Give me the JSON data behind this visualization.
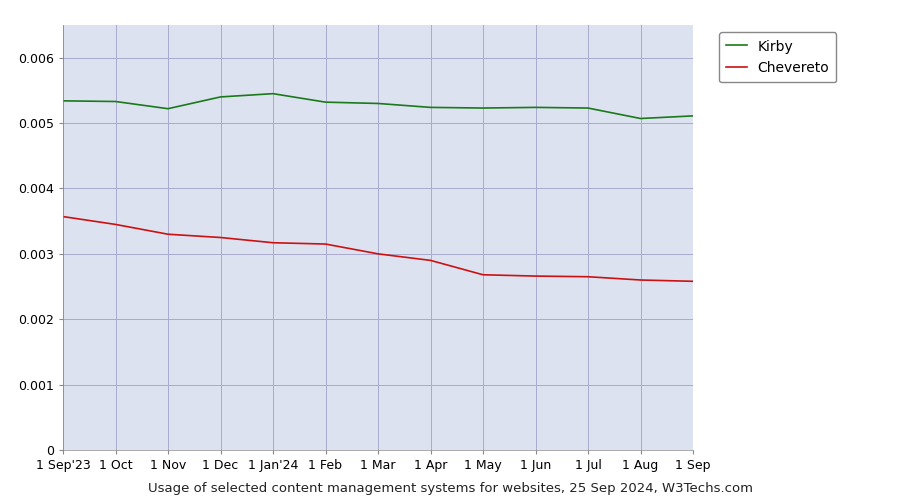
{
  "title": "Usage of selected content management systems for websites, 25 Sep 2024, W3Techs.com",
  "figure_bg_color": "#ffffff",
  "plot_bg_color": "#dde2f0",
  "x_labels": [
    "1 Sep'23",
    "1 Oct",
    "1 Nov",
    "1 Dec",
    "1 Jan'24",
    "1 Feb",
    "1 Mar",
    "1 Apr",
    "1 May",
    "1 Jun",
    "1 Jul",
    "1 Aug",
    "1 Sep"
  ],
  "kirby_values": [
    0.00534,
    0.00533,
    0.00522,
    0.0054,
    0.00545,
    0.00532,
    0.0053,
    0.00524,
    0.00523,
    0.00524,
    0.00523,
    0.00507,
    0.00511
  ],
  "chevereto_values": [
    0.00357,
    0.00345,
    0.0033,
    0.00325,
    0.00317,
    0.00315,
    0.003,
    0.0029,
    0.00268,
    0.00266,
    0.00265,
    0.0026,
    0.00258
  ],
  "kirby_color": "#1a7a1a",
  "chevereto_color": "#cc1111",
  "ylim": [
    0,
    0.0065
  ],
  "yticks": [
    0,
    0.001,
    0.002,
    0.003,
    0.004,
    0.005,
    0.006
  ],
  "grid_color": "#aaaacc",
  "legend_box_color": "#ffffff",
  "legend_border_color": "#888888",
  "title_fontsize": 9.5,
  "tick_fontsize": 9,
  "legend_fontsize": 10
}
